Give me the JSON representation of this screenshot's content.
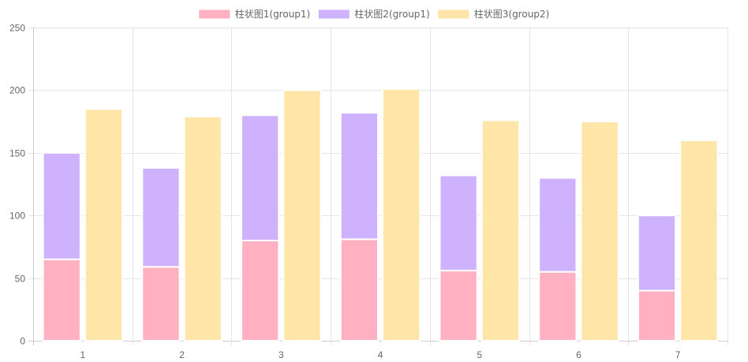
{
  "chart_data": {
    "type": "bar",
    "stacked_groups": true,
    "categories": [
      "1",
      "2",
      "3",
      "4",
      "5",
      "6",
      "7"
    ],
    "series": [
      {
        "name": "柱状图1(group1)",
        "stack": "group1",
        "values": [
          65,
          59,
          80,
          81,
          56,
          55,
          40
        ],
        "fill": "#ffb1c1",
        "border": "#ffffff"
      },
      {
        "name": "柱状图2(group1)",
        "stack": "group1",
        "values": [
          85,
          79,
          100,
          101,
          76,
          75,
          60
        ],
        "fill": "#cfb2fe",
        "border": "#ffffff"
      },
      {
        "name": "柱状图3(group2)",
        "stack": "group2",
        "values": [
          185,
          179,
          200,
          201,
          176,
          175,
          160
        ],
        "fill": "#ffe5a8",
        "border": "#ffffff"
      }
    ],
    "ylim": [
      0,
      250
    ],
    "yticks": [
      "0",
      "50",
      "100",
      "150",
      "200",
      "250"
    ],
    "grid": true,
    "legend_position": "top",
    "colors": {
      "grid": "#e5e5e5",
      "axis": "#cccccc",
      "tick_text": "#666666"
    }
  }
}
